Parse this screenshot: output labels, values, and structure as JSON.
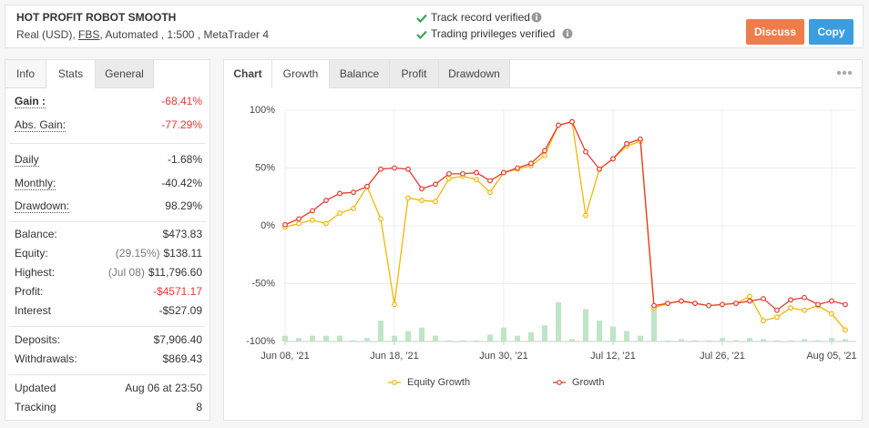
{
  "header": {
    "title": "HOT PROFIT ROBOT SMOOTH",
    "account": [
      "Real (USD),",
      "FBS",
      ", Automated , 1:500 , MetaTrader 4"
    ],
    "verifications": [
      "Track record verified",
      "Trading privileges verified"
    ],
    "buttons": [
      "Discuss",
      "Copy"
    ]
  },
  "left_tabs": [
    "Info",
    "Stats",
    "General"
  ],
  "stats": [
    [
      {
        "label": "Gain :",
        "value": "-68.41%",
        "color": "#e53935"
      },
      {
        "label": "Abs. Gain:",
        "value": "-77.29%",
        "color": "#e53935"
      }
    ],
    [
      {
        "label": "Daily",
        "value": "-1.68%"
      },
      {
        "label": "Monthly:",
        "value": "-40.42%"
      },
      {
        "label": "Drawdown:",
        "value": "98.29%"
      }
    ],
    [
      {
        "label": "Balance:",
        "value": "$473.83"
      },
      {
        "label": "Equity:",
        "note": "(29.15%)",
        "value": "$138.11"
      },
      {
        "label": "Highest:",
        "note": "(Jul 08)",
        "value": "$11,796.60"
      },
      {
        "label": "Profit:",
        "value": "-$4571.17",
        "color": "#e53935"
      },
      {
        "label": "Interest",
        "value": "-$527.09"
      }
    ],
    [
      {
        "label": "Deposits:",
        "value": "$7,906.40"
      },
      {
        "label": "Withdrawals:",
        "value": "$869.43"
      }
    ],
    [
      {
        "label": "Updated",
        "value": "Aug 06 at 23:50"
      },
      {
        "label": "Tracking",
        "value": "8"
      }
    ]
  ],
  "chart_tabs": [
    "Chart",
    "Growth",
    "Balance",
    "Profit",
    "Drawdown"
  ],
  "chart_data": {
    "type": "line",
    "categories": [
      "Jun 08, '21",
      null,
      null,
      null,
      null,
      null,
      null,
      null,
      "Jun 18, '21",
      null,
      null,
      null,
      null,
      null,
      null,
      null,
      "Jun 30, '21",
      null,
      null,
      null,
      null,
      null,
      null,
      null,
      "Jul 12, '21",
      null,
      null,
      null,
      null,
      null,
      null,
      null,
      "Jul 26, '21",
      null,
      null,
      null,
      null,
      null,
      null,
      null,
      "Aug 05, '21",
      null
    ],
    "series": [
      {
        "name": "Equity Growth",
        "color": "#f2b705",
        "values": [
          -1,
          2,
          5,
          2,
          11,
          15,
          34,
          6,
          -68,
          24,
          22,
          21,
          41,
          43,
          40,
          29,
          46,
          49,
          52,
          61,
          87,
          90,
          9,
          49,
          58,
          69,
          73,
          -71,
          -67,
          -65,
          -67,
          -69,
          -68,
          -67,
          -61,
          -82,
          -79,
          -71,
          -73,
          -69,
          -76,
          -90
        ]
      },
      {
        "name": "Growth",
        "color": "#e63a2e",
        "values": [
          1,
          6,
          13,
          22,
          28,
          29,
          34,
          49,
          50,
          49,
          32,
          36,
          45,
          45,
          46,
          39,
          46,
          50,
          54,
          65,
          87,
          90,
          64,
          49,
          58,
          71,
          75,
          -69,
          -67,
          -65,
          -67,
          -69,
          -68,
          -67,
          -65,
          -63,
          -73,
          -64,
          -62,
          -68,
          -65,
          -68
        ]
      }
    ],
    "bars": {
      "color": "#bfe5c7",
      "values": [
        5,
        3,
        5,
        5,
        5,
        1,
        3,
        18,
        5,
        9,
        12,
        5,
        1,
        1,
        1,
        6,
        12,
        5,
        8,
        14,
        34,
        2,
        28,
        18,
        13,
        9,
        5,
        31,
        1,
        2,
        1,
        1,
        3,
        1,
        3,
        2,
        1,
        1,
        2,
        1,
        3,
        2
      ]
    },
    "ylim": [
      -100,
      100
    ],
    "yticks": [
      {
        "value": 100,
        "label": "100%"
      },
      {
        "value": 50,
        "label": "50%"
      },
      {
        "value": 0,
        "label": "0%"
      },
      {
        "value": -50,
        "label": "-50%"
      },
      {
        "value": -100,
        "label": "-100%"
      }
    ],
    "grid": true,
    "legend": "bottom"
  }
}
